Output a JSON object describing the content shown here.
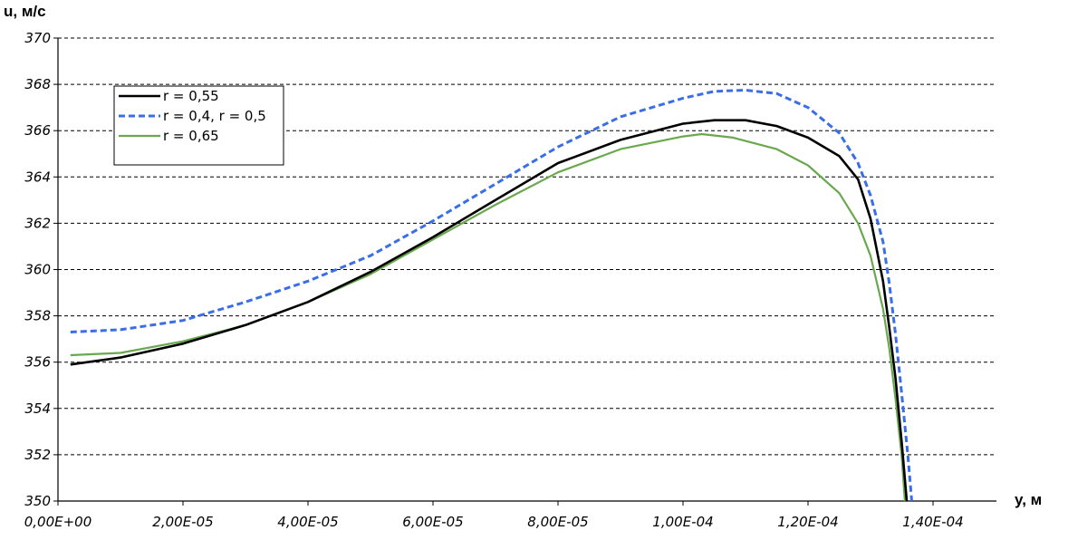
{
  "chart_data": {
    "type": "line",
    "title": "",
    "ylabel": "u, м/с",
    "xlabel": "y, м",
    "xlim": [
      0,
      0.00015
    ],
    "ylim": [
      350,
      370
    ],
    "x_ticks": [
      0,
      2e-05,
      4e-05,
      6e-05,
      8e-05,
      0.0001,
      0.00012,
      0.00014
    ],
    "x_tick_labels": [
      "0,00E+00",
      "2,00E-05",
      "4,00E-05",
      "6,00E-05",
      "8,00E-05",
      "1,00E-04",
      "1,20E-04",
      "1,40E-04"
    ],
    "y_ticks": [
      350,
      352,
      354,
      356,
      358,
      360,
      362,
      364,
      366,
      368,
      370
    ],
    "y_tick_labels": [
      "350",
      "352",
      "354",
      "356",
      "358",
      "360",
      "362",
      "364",
      "366",
      "368",
      "370"
    ],
    "grid": "horizontal dashed",
    "legend_position": "top-left",
    "series": [
      {
        "name": "r = 0,55",
        "color": "#000000",
        "style": "solid",
        "points": [
          [
            2e-06,
            355.9
          ],
          [
            1e-05,
            356.2
          ],
          [
            2e-05,
            356.8
          ],
          [
            3e-05,
            357.6
          ],
          [
            4e-05,
            358.6
          ],
          [
            5e-05,
            359.9
          ],
          [
            6e-05,
            361.4
          ],
          [
            7e-05,
            363.0
          ],
          [
            8e-05,
            364.6
          ],
          [
            9e-05,
            365.6
          ],
          [
            0.0001,
            366.3
          ],
          [
            0.000105,
            366.45
          ],
          [
            0.00011,
            366.45
          ],
          [
            0.000115,
            366.2
          ],
          [
            0.00012,
            365.7
          ],
          [
            0.000125,
            364.9
          ],
          [
            0.000128,
            363.9
          ],
          [
            0.00013,
            362.2
          ],
          [
            0.000132,
            359.5
          ],
          [
            0.000133,
            357.5
          ],
          [
            0.000134,
            355.3
          ],
          [
            0.000135,
            352.5
          ],
          [
            0.0001358,
            350.0
          ]
        ]
      },
      {
        "name": "r = 0,4, r = 0,5",
        "color": "#3a6ee8",
        "style": "dashed",
        "points": [
          [
            2e-06,
            357.3
          ],
          [
            1e-05,
            357.4
          ],
          [
            2e-05,
            357.8
          ],
          [
            3e-05,
            358.6
          ],
          [
            4e-05,
            359.5
          ],
          [
            5e-05,
            360.6
          ],
          [
            6e-05,
            362.1
          ],
          [
            7e-05,
            363.7
          ],
          [
            8e-05,
            365.3
          ],
          [
            9e-05,
            366.6
          ],
          [
            0.0001,
            367.4
          ],
          [
            0.000105,
            367.7
          ],
          [
            0.00011,
            367.75
          ],
          [
            0.000115,
            367.6
          ],
          [
            0.00012,
            367.0
          ],
          [
            0.000125,
            365.9
          ],
          [
            0.000128,
            364.6
          ],
          [
            0.00013,
            363.2
          ],
          [
            0.000132,
            361.2
          ],
          [
            0.000133,
            359.4
          ],
          [
            0.000134,
            357.2
          ],
          [
            0.000135,
            354.6
          ],
          [
            0.000136,
            351.9
          ],
          [
            0.0001366,
            350.0
          ]
        ]
      },
      {
        "name": "r = 0,65",
        "color": "#6aa84f",
        "style": "solid-thin",
        "points": [
          [
            2e-06,
            356.3
          ],
          [
            1e-05,
            356.4
          ],
          [
            2e-05,
            356.9
          ],
          [
            3e-05,
            357.6
          ],
          [
            4e-05,
            358.6
          ],
          [
            5e-05,
            359.8
          ],
          [
            6e-05,
            361.3
          ],
          [
            7e-05,
            362.8
          ],
          [
            8e-05,
            364.2
          ],
          [
            9e-05,
            365.2
          ],
          [
            0.0001,
            365.75
          ],
          [
            0.000103,
            365.85
          ],
          [
            0.000108,
            365.7
          ],
          [
            0.000115,
            365.2
          ],
          [
            0.00012,
            364.5
          ],
          [
            0.000125,
            363.3
          ],
          [
            0.000128,
            362.0
          ],
          [
            0.00013,
            360.6
          ],
          [
            0.000132,
            358.3
          ],
          [
            0.000133,
            356.6
          ],
          [
            0.000134,
            354.4
          ],
          [
            0.000135,
            351.9
          ],
          [
            0.0001355,
            350.0
          ]
        ]
      }
    ]
  }
}
